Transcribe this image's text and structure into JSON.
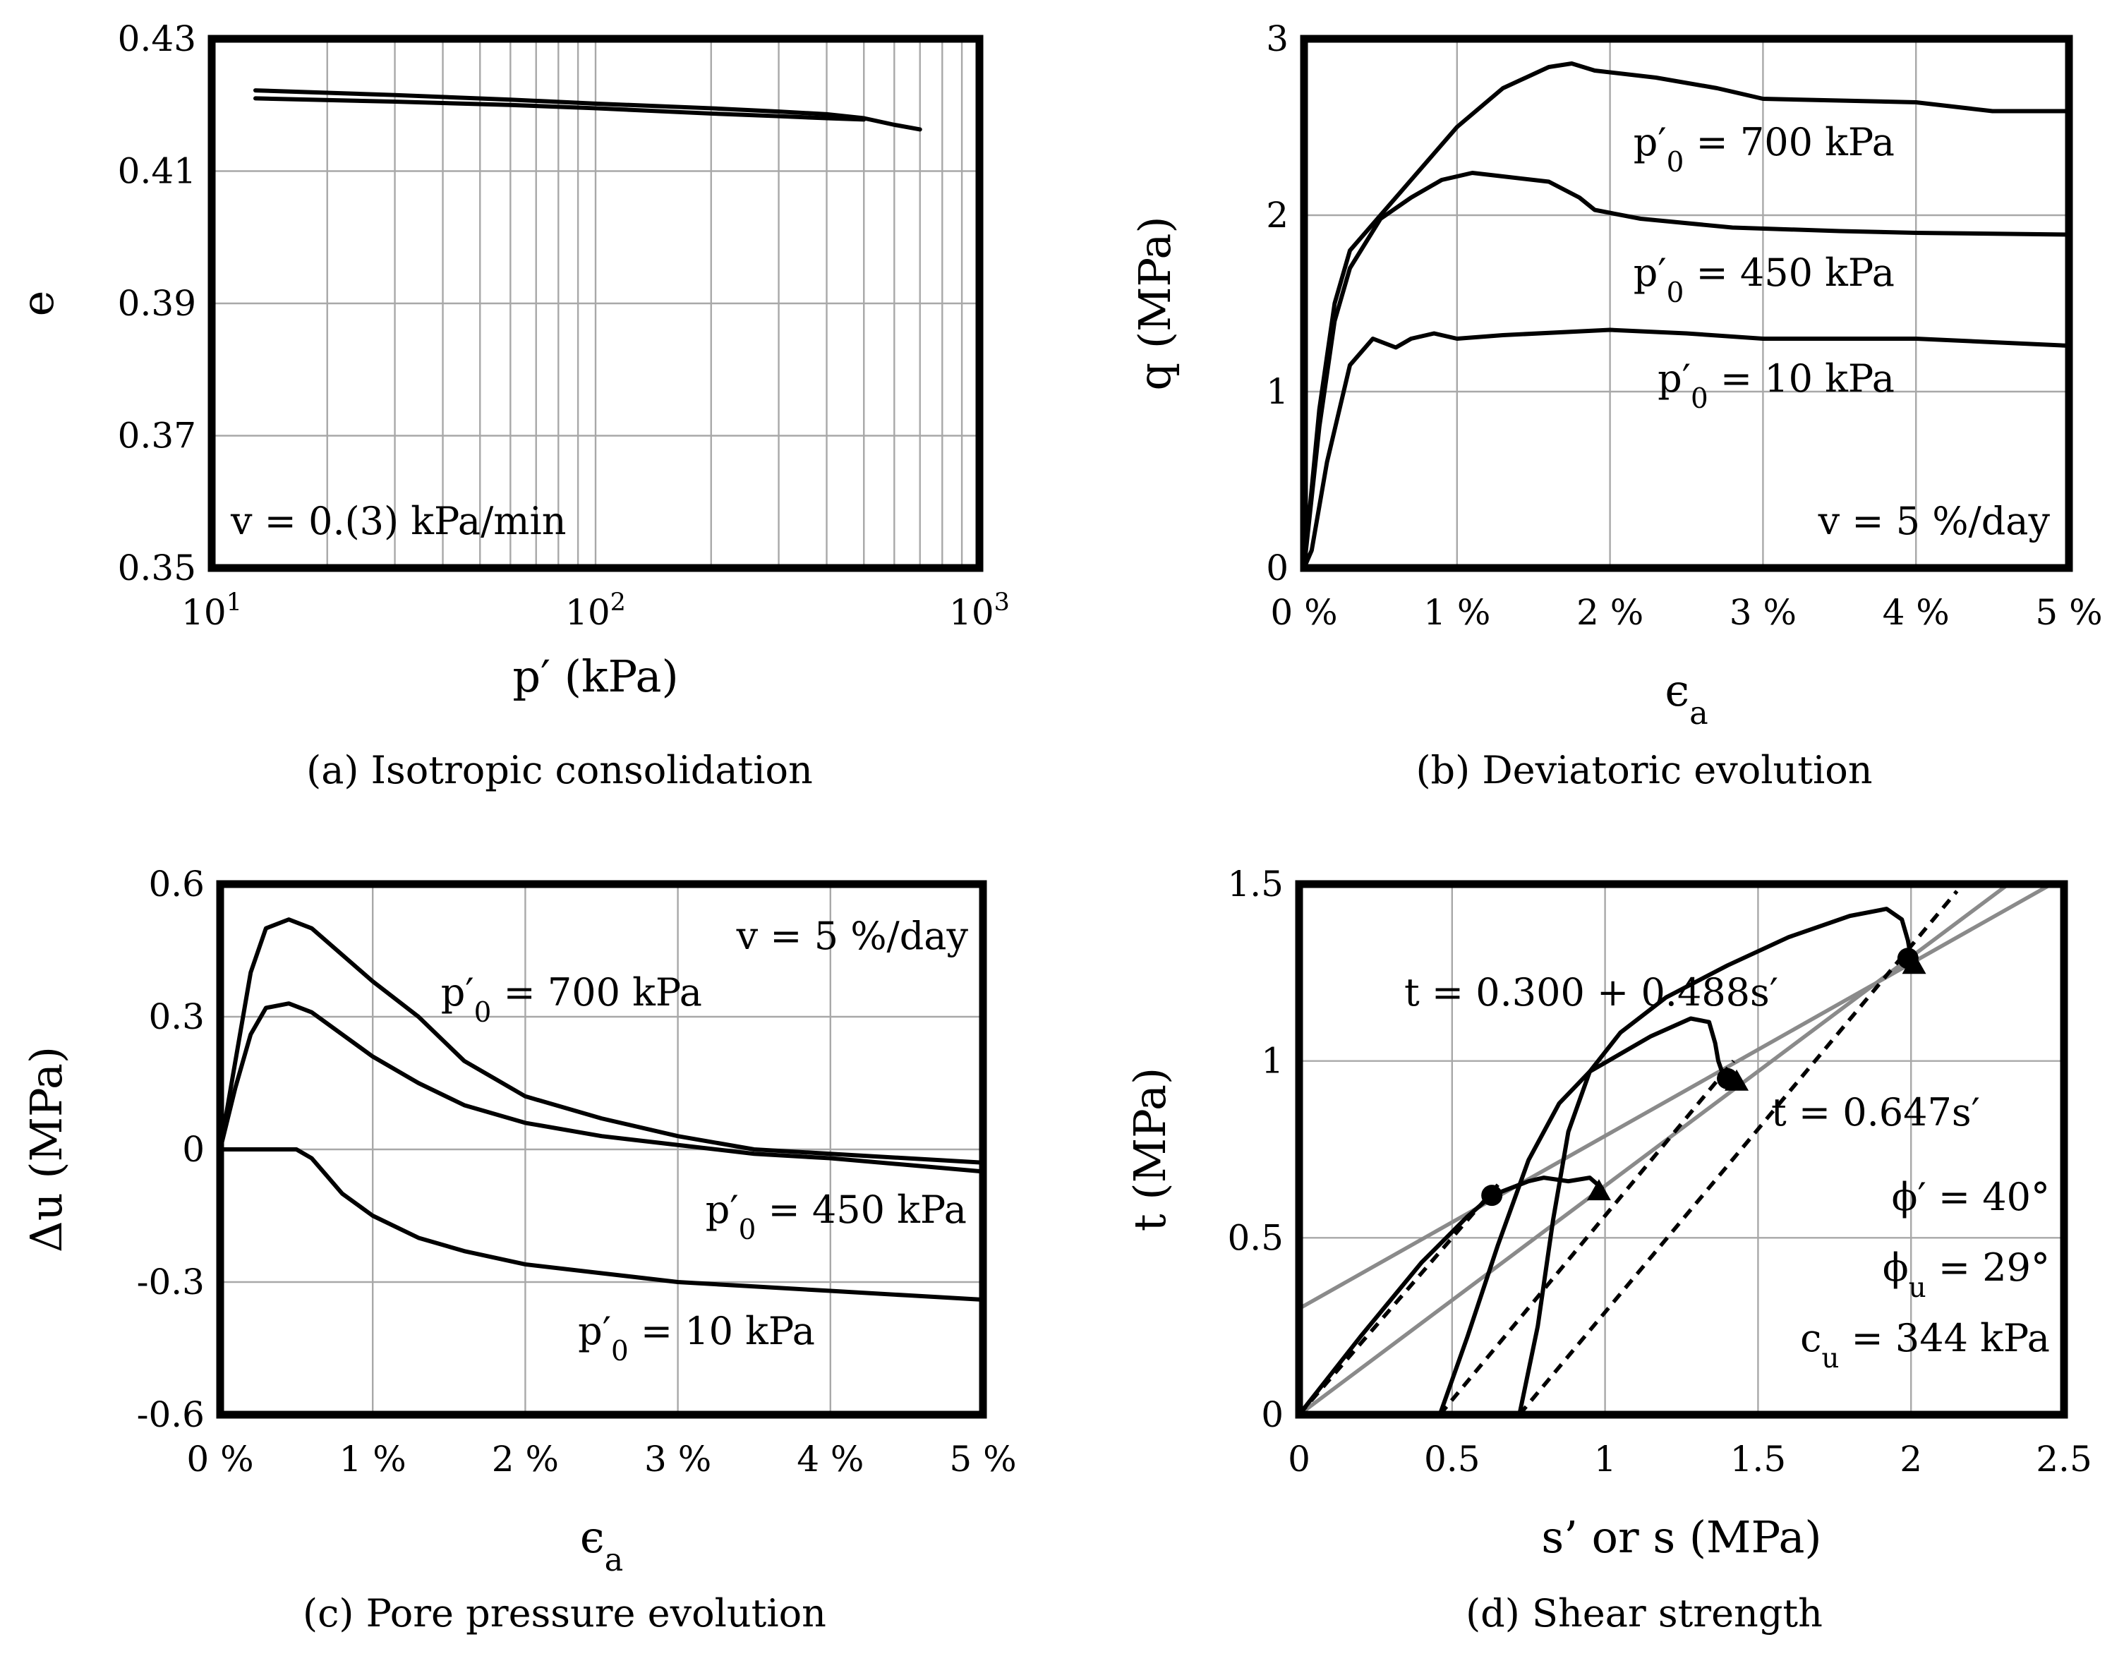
{
  "chart_data": [
    {
      "type": "line",
      "caption": "(a) Isotropic consolidation",
      "xlabel": "p′ (kPa)",
      "ylabel": "e",
      "xscale": "log",
      "xlim": [
        10,
        1000
      ],
      "ylim": [
        0.35,
        0.43
      ],
      "xticks": [
        "10¹",
        "10²",
        "10³"
      ],
      "yticks": [
        "0.35",
        "0.37",
        "0.39",
        "0.41",
        "0.43"
      ],
      "grid": true,
      "annotations": [
        "v = 0.(3) kPa/min"
      ],
      "series": [
        {
          "x": [
            13,
            30,
            60,
            100,
            200,
            300,
            400,
            500
          ],
          "y": [
            0.4222,
            0.4215,
            0.4208,
            0.4202,
            0.4195,
            0.419,
            0.4186,
            0.418
          ]
        },
        {
          "x": [
            500,
            600,
            700
          ],
          "y": [
            0.418,
            0.417,
            0.4163
          ]
        },
        {
          "x": [
            13,
            30,
            60,
            100,
            200,
            300,
            400,
            500
          ],
          "y": [
            0.421,
            0.4205,
            0.42,
            0.4195,
            0.4187,
            0.4183,
            0.418,
            0.4178
          ]
        }
      ]
    },
    {
      "type": "line",
      "caption": "(b) Deviatoric evolution",
      "xlabel": "ϵa",
      "ylabel": "q (MPa)",
      "xlim": [
        0,
        5
      ],
      "ylim": [
        0,
        3
      ],
      "xticks": [
        "0 %",
        "1 %",
        "2 %",
        "3 %",
        "4 %",
        "5 %"
      ],
      "yticks": [
        "0",
        "1",
        "2",
        "3"
      ],
      "grid": true,
      "annotations": [
        "v = 5 %/day"
      ],
      "series": [
        {
          "label": "p′0 = 700 kPa",
          "x": [
            0,
            0.1,
            0.2,
            0.3,
            0.5,
            0.8,
            1.0,
            1.3,
            1.6,
            1.75,
            1.9,
            2.3,
            2.7,
            3.0,
            3.5,
            4.0,
            4.2,
            4.5,
            5.0
          ],
          "y": [
            0,
            0.9,
            1.5,
            1.8,
            2.0,
            2.3,
            2.5,
            2.72,
            2.84,
            2.86,
            2.82,
            2.78,
            2.72,
            2.66,
            2.65,
            2.64,
            2.62,
            2.59,
            2.59
          ]
        },
        {
          "label": "p′0 = 450 kPa",
          "x": [
            0,
            0.1,
            0.2,
            0.3,
            0.5,
            0.7,
            0.9,
            1.1,
            1.3,
            1.6,
            1.8,
            1.9,
            2.2,
            2.8,
            3.5,
            4.0,
            5.0
          ],
          "y": [
            0,
            0.8,
            1.4,
            1.7,
            1.98,
            2.1,
            2.2,
            2.24,
            2.22,
            2.19,
            2.1,
            2.03,
            1.98,
            1.93,
            1.91,
            1.9,
            1.89
          ]
        },
        {
          "label": "p′0 = 10 kPa",
          "x": [
            0,
            0.05,
            0.15,
            0.3,
            0.45,
            0.6,
            0.7,
            0.85,
            1.0,
            1.3,
            2.0,
            2.5,
            3.0,
            3.5,
            4.0,
            4.5,
            5.0
          ],
          "y": [
            0,
            0.1,
            0.6,
            1.15,
            1.3,
            1.25,
            1.3,
            1.33,
            1.3,
            1.32,
            1.35,
            1.33,
            1.3,
            1.3,
            1.3,
            1.28,
            1.26
          ]
        }
      ]
    },
    {
      "type": "line",
      "caption": "(c) Pore pressure evolution",
      "xlabel": "ϵa",
      "ylabel": "Δu (MPa)",
      "xlim": [
        0,
        5
      ],
      "ylim": [
        -0.6,
        0.6
      ],
      "xticks": [
        "0 %",
        "1 %",
        "2 %",
        "3 %",
        "4 %",
        "5 %"
      ],
      "yticks": [
        "-0.6",
        "-0.3",
        "0",
        "0.3",
        "0.6"
      ],
      "grid": true,
      "annotations": [
        "v = 5 %/day"
      ],
      "series": [
        {
          "label": "p′0 = 700 kPa",
          "x": [
            0,
            0.1,
            0.2,
            0.3,
            0.45,
            0.6,
            0.8,
            1.0,
            1.3,
            1.6,
            2.0,
            2.5,
            3.0,
            3.5,
            4.0,
            5.0
          ],
          "y": [
            0,
            0.2,
            0.4,
            0.5,
            0.52,
            0.5,
            0.44,
            0.38,
            0.3,
            0.2,
            0.12,
            0.07,
            0.03,
            0.0,
            -0.01,
            -0.03
          ]
        },
        {
          "label": "p′0 = 450 kPa",
          "x": [
            0,
            0.1,
            0.2,
            0.3,
            0.45,
            0.6,
            0.8,
            1.0,
            1.3,
            1.6,
            2.0,
            2.5,
            3.0,
            3.5,
            4.0,
            5.0
          ],
          "y": [
            0,
            0.14,
            0.26,
            0.32,
            0.33,
            0.31,
            0.26,
            0.21,
            0.15,
            0.1,
            0.06,
            0.03,
            0.01,
            -0.01,
            -0.02,
            -0.05
          ]
        },
        {
          "label": "p′0 = 10 kPa",
          "x": [
            0,
            0.1,
            0.3,
            0.5,
            0.6,
            0.7,
            0.8,
            1.0,
            1.3,
            1.6,
            2.0,
            2.5,
            3.0,
            3.5,
            4.0,
            4.5,
            5.0
          ],
          "y": [
            0,
            0,
            0.0,
            0.0,
            -0.02,
            -0.06,
            -0.1,
            -0.15,
            -0.2,
            -0.23,
            -0.26,
            -0.28,
            -0.3,
            -0.31,
            -0.32,
            -0.33,
            -0.34
          ]
        }
      ]
    },
    {
      "type": "line",
      "caption": "(d) Shear strength",
      "xlabel": "s’ or s (MPa)",
      "ylabel": "t (MPa)",
      "xlim": [
        0,
        2.5
      ],
      "ylim": [
        0,
        1.5
      ],
      "xticks": [
        "0",
        "0.5",
        "1",
        "1.5",
        "2",
        "2.5"
      ],
      "yticks": [
        "0",
        "0.5",
        "1",
        "1.5"
      ],
      "grid": true,
      "annotations": [
        "t = 0.300 + 0.488s′",
        "t = 0.647s′",
        "ϕ′ = 40°",
        "ϕu = 29°",
        "cu = 344 kPa"
      ],
      "fit_lines": [
        {
          "label": "t = 0.300 + 0.488s′",
          "intercept": 0.3,
          "slope": 0.488
        },
        {
          "label": "t = 0.647s′",
          "intercept": 0,
          "slope": 0.647
        }
      ],
      "series": [
        {
          "x": [
            0,
            0.2,
            0.4,
            0.55,
            0.63,
            0.75,
            0.8,
            0.88,
            0.95,
            0.99
          ],
          "y": [
            0,
            0.22,
            0.43,
            0.56,
            0.62,
            0.66,
            0.67,
            0.66,
            0.67,
            0.64
          ]
        },
        {
          "x": [
            0.46,
            0.55,
            0.65,
            0.75,
            0.85,
            0.95,
            1.05,
            1.15,
            1.28,
            1.34,
            1.36,
            1.37,
            1.39
          ],
          "y": [
            0,
            0.22,
            0.48,
            0.72,
            0.88,
            0.97,
            1.02,
            1.07,
            1.12,
            1.11,
            1.05,
            1.0,
            0.95
          ]
        },
        {
          "x": [
            0.72,
            0.78,
            0.83,
            0.88,
            0.95,
            1.05,
            1.2,
            1.4,
            1.6,
            1.8,
            1.92,
            1.97,
            1.99,
            2.0
          ],
          "y": [
            0,
            0.25,
            0.55,
            0.8,
            0.97,
            1.08,
            1.18,
            1.27,
            1.35,
            1.41,
            1.43,
            1.4,
            1.34,
            1.29
          ]
        }
      ],
      "dashed_lines": [
        {
          "x": [
            0.46,
            1.42
          ],
          "y": [
            0,
            1.0
          ]
        },
        {
          "x": [
            0.72,
            2.15
          ],
          "y": [
            0,
            1.48
          ]
        },
        {
          "x": [
            0.0,
            0.65
          ],
          "y": [
            0,
            0.65
          ]
        }
      ],
      "circle_markers": {
        "x": [
          0.63,
          1.4,
          1.99
        ],
        "y": [
          0.62,
          0.95,
          1.29
        ]
      },
      "triangle_markers": {
        "x": [
          0.98,
          1.43,
          2.01
        ],
        "y": [
          0.63,
          0.94,
          1.27
        ]
      }
    }
  ]
}
